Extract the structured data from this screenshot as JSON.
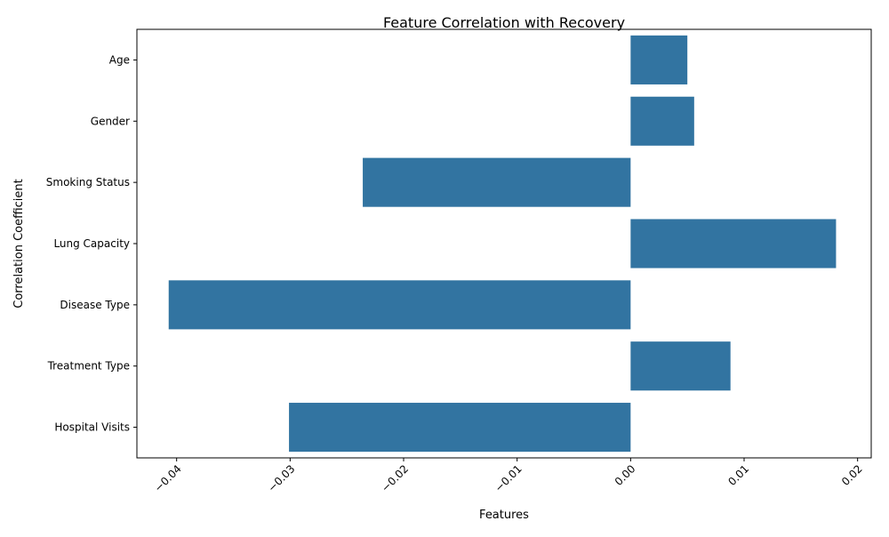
{
  "chart_data": {
    "type": "bar",
    "orientation": "horizontal",
    "title": "Feature Correlation with Recovery",
    "xlabel": "Features",
    "ylabel": "Correlation Coefficient",
    "categories": [
      "Age",
      "Gender",
      "Smoking Status",
      "Lung Capacity",
      "Disease Type",
      "Treatment Type",
      "Hospital Visits"
    ],
    "values": [
      0.005,
      0.0056,
      -0.0236,
      0.0181,
      -0.0407,
      0.0088,
      -0.0301
    ],
    "xlim": [
      -0.0435,
      0.0212
    ],
    "xticks": [
      -0.04,
      -0.03,
      -0.02,
      -0.01,
      0.0,
      0.01,
      0.02
    ],
    "xtick_labels": [
      "−0.04",
      "−0.03",
      "−0.02",
      "−0.01",
      "0.00",
      "0.01",
      "0.02"
    ],
    "grid": false,
    "bar_color": "#3274a1"
  }
}
